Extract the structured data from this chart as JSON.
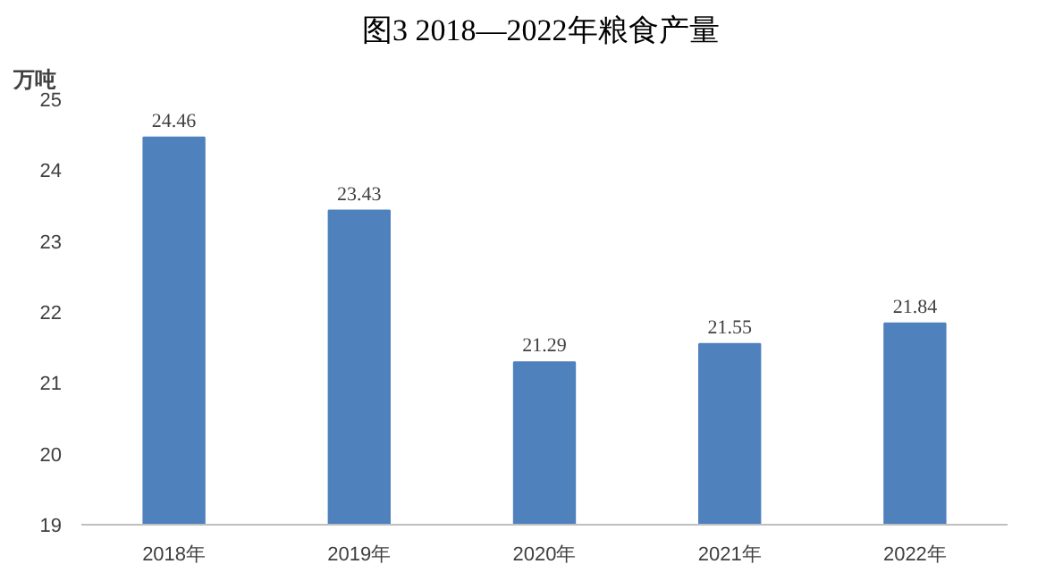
{
  "chart_data": {
    "type": "bar",
    "title": "图3  2018—2022年粮食产量",
    "ylabel": "万吨",
    "categories": [
      "2018年",
      "2019年",
      "2020年",
      "2021年",
      "2022年"
    ],
    "values": [
      24.46,
      23.43,
      21.29,
      21.55,
      21.84
    ],
    "color": "#4f81bd",
    "ylim": [
      19,
      25
    ],
    "yticks": [
      19,
      20,
      21,
      22,
      23,
      24,
      25
    ],
    "data_labels": true,
    "grid": false
  }
}
